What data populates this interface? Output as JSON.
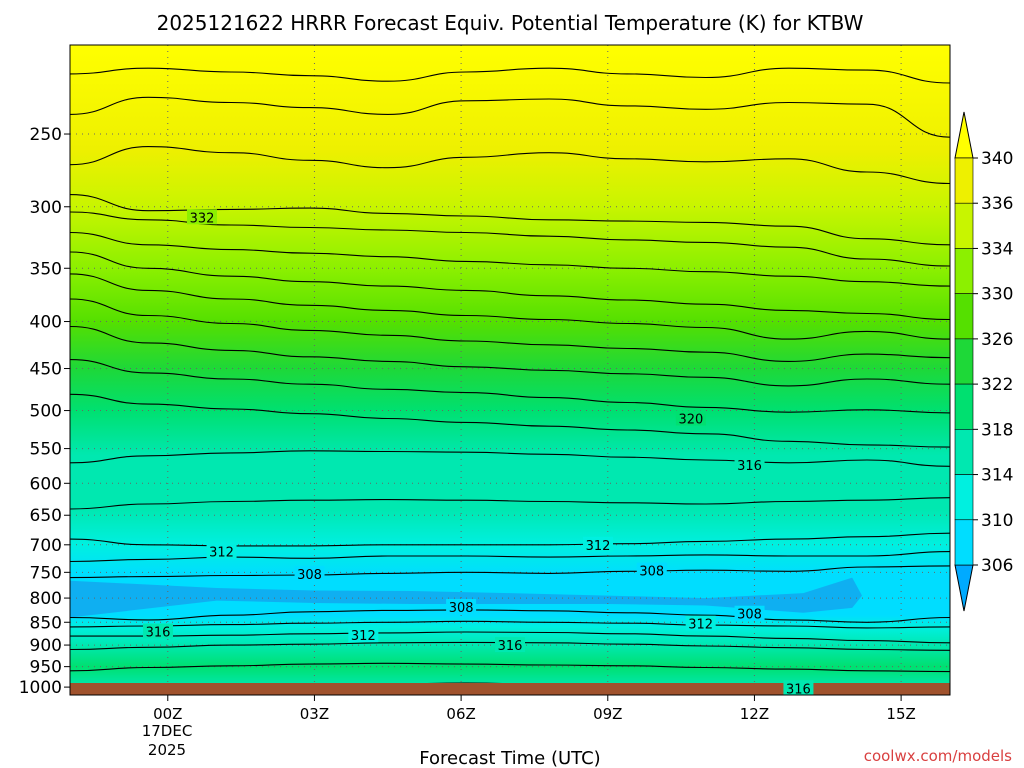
{
  "chart_data": {
    "type": "heatmap",
    "title": "2025121622 HRRR Forecast Equiv. Potential Temperature (K) for KTBW",
    "xlabel": "Forecast Time (UTC)",
    "ylabel": "",
    "x_ticks": [
      "00Z",
      "03Z",
      "06Z",
      "09Z",
      "12Z",
      "15Z"
    ],
    "x_tick_hours": [
      0,
      3,
      6,
      9,
      12,
      15
    ],
    "x_date_label": [
      "17DEC",
      "2025"
    ],
    "xlim_hours": [
      -2,
      16
    ],
    "y_ticks": [
      250,
      300,
      350,
      400,
      450,
      500,
      550,
      600,
      650,
      700,
      750,
      800,
      850,
      900,
      950,
      1000
    ],
    "ylim_hPa": [
      200,
      1020
    ],
    "y_scale": "log",
    "grid": true,
    "colorbar": {
      "levels": [
        306,
        310,
        314,
        318,
        322,
        326,
        330,
        334,
        336,
        340
      ],
      "colors": [
        "#00aaff",
        "#00ddff",
        "#00f0e0",
        "#00e8b0",
        "#00e070",
        "#1ed838",
        "#55e000",
        "#8cf000",
        "#c8f500",
        "#eef000",
        "#ffff00"
      ],
      "extend": "both"
    },
    "contour_labels": [
      {
        "value": "332",
        "hour": 0.7,
        "p": 308
      },
      {
        "value": "320",
        "hour": 10.7,
        "p": 510
      },
      {
        "value": "316",
        "hour": 11.9,
        "p": 573
      },
      {
        "value": "312",
        "hour": 1.1,
        "p": 712
      },
      {
        "value": "312",
        "hour": 8.8,
        "p": 700
      },
      {
        "value": "308",
        "hour": 2.9,
        "p": 753
      },
      {
        "value": "308",
        "hour": 9.9,
        "p": 747
      },
      {
        "value": "308",
        "hour": 6.0,
        "p": 818
      },
      {
        "value": "308",
        "hour": 11.9,
        "p": 832
      },
      {
        "value": "312",
        "hour": 4.0,
        "p": 878
      },
      {
        "value": "312",
        "hour": 10.9,
        "p": 853
      },
      {
        "value": "316",
        "hour": -0.2,
        "p": 870
      },
      {
        "value": "316",
        "hour": 7.0,
        "p": 900
      },
      {
        "value": "316",
        "hour": 12.9,
        "p": 1003
      }
    ],
    "contours": [
      {
        "value": 340,
        "p": [
          215,
          212,
          214,
          216,
          219,
          214,
          212,
          215,
          217,
          212,
          213,
          220
        ]
      },
      {
        "value": 338,
        "p": [
          238,
          228,
          231,
          234,
          238,
          230,
          229,
          233,
          235,
          231,
          232,
          252
        ]
      },
      {
        "value": 336,
        "p": [
          270,
          258,
          262,
          267,
          272,
          265,
          262,
          266,
          268,
          266,
          275,
          283
        ]
      },
      {
        "value": 334,
        "p": [
          291,
          303,
          302,
          301,
          305,
          307,
          310,
          311,
          312,
          315,
          325,
          330
        ]
      },
      {
        "value": 332,
        "p": [
          304,
          310,
          314,
          316,
          318,
          320,
          323,
          326,
          328,
          332,
          342,
          348
        ]
      },
      {
        "value": 330,
        "p": [
          320,
          330,
          334,
          337,
          340,
          344,
          347,
          350,
          353,
          357,
          362,
          366
        ]
      },
      {
        "value": 328,
        "p": [
          336,
          350,
          357,
          362,
          366,
          370,
          375,
          379,
          383,
          389,
          392,
          398
        ]
      },
      {
        "value": 326,
        "p": [
          355,
          370,
          378,
          384,
          389,
          394,
          398,
          402,
          406,
          418,
          410,
          418
        ]
      },
      {
        "value": 324,
        "p": [
          378,
          394,
          402,
          409,
          414,
          420,
          424,
          428,
          432,
          442,
          434,
          438
        ]
      },
      {
        "value": 322,
        "p": [
          405,
          422,
          430,
          437,
          442,
          448,
          452,
          456,
          460,
          470,
          462,
          468
        ]
      },
      {
        "value": 320,
        "p": [
          440,
          455,
          462,
          468,
          474,
          478,
          484,
          490,
          496,
          502,
          499,
          503
        ]
      },
      {
        "value": 318,
        "p": [
          480,
          492,
          498,
          504,
          510,
          515,
          520,
          525,
          530,
          540,
          545,
          548
        ]
      },
      {
        "value": 316,
        "p": [
          570,
          560,
          556,
          553,
          554,
          555,
          558,
          562,
          566,
          570,
          566,
          575
        ]
      },
      {
        "value": 314,
        "p": [
          640,
          632,
          628,
          626,
          625,
          626,
          628,
          630,
          632,
          628,
          626,
          622
        ]
      },
      {
        "value": 312,
        "p": [
          690,
          700,
          702,
          702,
          700,
          700,
          700,
          698,
          694,
          690,
          686,
          680
        ]
      },
      {
        "value": 310,
        "p": [
          730,
          726,
          722,
          724,
          720,
          720,
          722,
          720,
          718,
          720,
          720,
          712
        ]
      },
      {
        "value": 308,
        "p": [
          760,
          758,
          756,
          755,
          752,
          750,
          752,
          748,
          746,
          748,
          740,
          738
        ]
      },
      {
        "value": 310,
        "p": [
          840,
          845,
          835,
          828,
          825,
          824,
          826,
          830,
          835,
          845,
          850,
          840
        ]
      },
      {
        "value": 312,
        "p": [
          860,
          858,
          855,
          852,
          850,
          848,
          850,
          852,
          856,
          858,
          862,
          860
        ]
      },
      {
        "value": 314,
        "p": [
          880,
          880,
          878,
          875,
          873,
          871,
          872,
          875,
          880,
          885,
          890,
          895
        ]
      },
      {
        "value": 316,
        "p": [
          910,
          905,
          900,
          898,
          895,
          894,
          895,
          898,
          902,
          906,
          910,
          912
        ]
      },
      {
        "value": 318,
        "p": [
          960,
          952,
          948,
          944,
          942,
          944,
          946,
          948,
          952,
          956,
          960,
          962
        ]
      },
      {
        "value": 316,
        "p": [
          1010,
          1002,
          998,
          995,
          992,
          990,
          993,
          995,
          998,
          1000,
          1004,
          1008
        ]
      }
    ],
    "contour_hours": [
      -2,
      -0.4,
      1.3,
      2.9,
      4.5,
      6.1,
      7.8,
      9.4,
      11.0,
      12.7,
      14.3,
      16
    ]
  },
  "credit": "coolwx.com/models"
}
